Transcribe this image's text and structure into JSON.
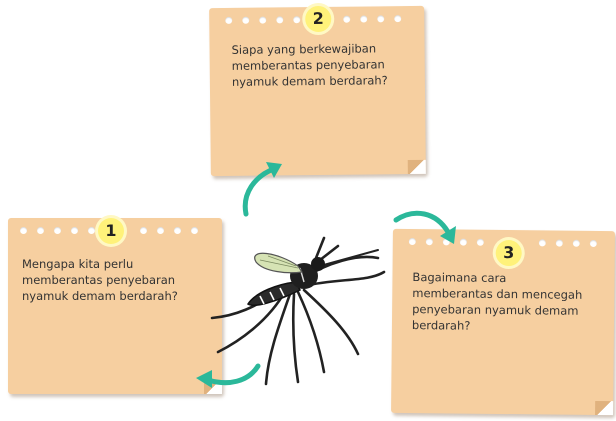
{
  "notes": [
    {
      "number": "1",
      "lines": [
        "Mengapa kita perlu",
        "memberantas penyebaran",
        "nyamuk demam berdarah?"
      ]
    },
    {
      "number": "2",
      "lines": [
        "Siapa yang berkewajiban",
        "memberantas penyebaran",
        "nyamuk demam berdarah?"
      ]
    },
    {
      "number": "3",
      "lines": [
        "Bagaimana cara",
        "memberantas dan mencegah",
        "penyebaran nyamuk demam",
        "berdarah?"
      ]
    }
  ],
  "colors": {
    "note": "#f6cfa0",
    "badge": "#fff27a",
    "arrow": "#2bb89a",
    "mosquito": "#222222",
    "wing": "#d6e3b4"
  },
  "icons": [
    "mosquito-icon",
    "curved-arrow-icon"
  ]
}
